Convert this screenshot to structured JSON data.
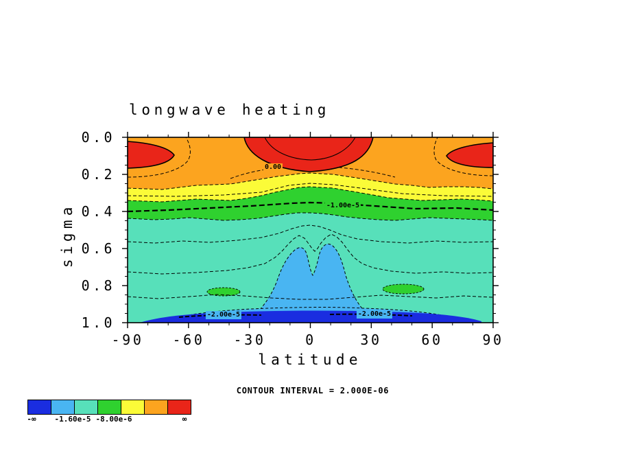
{
  "title": "longwave heating",
  "axes": {
    "xlabel": "latitude",
    "ylabel": "sigma",
    "x_ticks": [
      "-90",
      "-60",
      "-30",
      "0",
      "30",
      "60",
      "90"
    ],
    "y_ticks": [
      "0.0",
      "0.2",
      "0.4",
      "0.6",
      "0.8",
      "1.0"
    ]
  },
  "footer": {
    "contour_interval_note": "CONTOUR INTERVAL =  2.000E-06"
  },
  "contour_labels": {
    "zero": "0.00",
    "minus_1e5": "-1.00e-5",
    "minus_2e5_left": "-2.00e-5",
    "minus_2e5_right": "-2.00e-5"
  },
  "colorbar": {
    "swatches": [
      {
        "name": "blue",
        "color": "#1a2de0"
      },
      {
        "name": "light-blue",
        "color": "#49b5f2"
      },
      {
        "name": "aquamarine",
        "color": "#57e0ba"
      },
      {
        "name": "green",
        "color": "#2fd12f"
      },
      {
        "name": "yellow",
        "color": "#fbfb38"
      },
      {
        "name": "orange",
        "color": "#fca41f"
      },
      {
        "name": "red",
        "color": "#e92519"
      }
    ],
    "labels": [
      "-∞",
      "-1.60e-5",
      "-8.00e-6",
      "∞"
    ]
  },
  "chart_data": {
    "type": "heatmap",
    "subtype": "filled_contour",
    "title": "longwave heating",
    "xlabel": "latitude",
    "ylabel": "sigma",
    "xlim": [
      -90,
      90
    ],
    "y_axis_top_to_bottom": [
      0.0,
      1.0
    ],
    "x_ticks": [
      -90,
      -60,
      -30,
      0,
      30,
      60,
      90
    ],
    "y_ticks": [
      0.0,
      0.2,
      0.4,
      0.6,
      0.8,
      1.0
    ],
    "contour_interval": 2e-06,
    "line_style": "negative contours dashed, zero/positive contours solid",
    "labeled_contours": [
      0.0,
      -1e-05,
      -2e-05
    ],
    "fill_levels": [
      {
        "color": "#1a2de0",
        "range": [
          "-inf",
          -2e-05
        ]
      },
      {
        "color": "#49b5f2",
        "range": [
          -2e-05,
          -1.6e-05
        ]
      },
      {
        "color": "#57e0ba",
        "range": [
          -1.6e-05,
          -1.2e-05
        ]
      },
      {
        "color": "#2fd12f",
        "range": [
          -1.2e-05,
          -8e-06
        ]
      },
      {
        "color": "#fbfb38",
        "range": [
          -8e-06,
          -4e-06
        ]
      },
      {
        "color": "#fca41f",
        "range": [
          -4e-06,
          0.0
        ]
      },
      {
        "color": "#e92519",
        "range": [
          0.0,
          "inf"
        ]
      }
    ],
    "features": [
      "red (positive) heating at top of domain: lat ~-35..+30 above sigma~0.2, and poleward of ±65 above sigma~0.17",
      "orange band (-4e-6..0) over sigma ~0..0.28",
      "yellow band (-8e-6..-4e-6) sigma ~0.2..0.35, arching upward over the equator",
      "green band (-1.2e-5..-8e-6) sigma ~0.3..0.45, heavy dashed -1.00e-5 contour through it; small green patches near sigma~0.83 at lat ~-45 and ~+45",
      "aquamarine (-1.6e-5..-1.2e-5) fills most of sigma ~0.45..0.93",
      "light-blue (-2e-5..-1.6e-5) twin equatorial plumes sigma ~0.6..0.95 plus a near-surface band",
      "blue (< -2e-5) near-surface layer sigma ~0.95..1.0 across most latitudes, labeled -2.00e-5"
    ]
  }
}
